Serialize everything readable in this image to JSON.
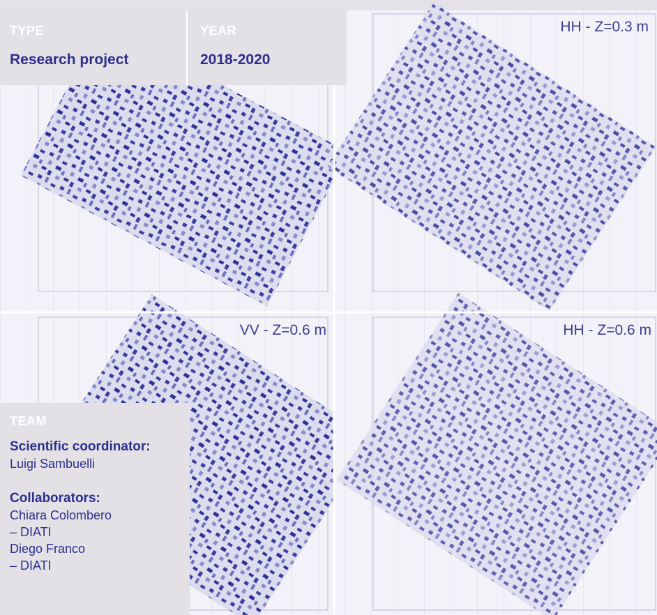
{
  "info": {
    "type_label": "TYPE",
    "type_value": "Research project",
    "year_label": "YEAR",
    "year_value": "2018-2020"
  },
  "maps": {
    "top_right": "HH - Z=0.3 m",
    "bottom_left": "VV - Z=0.6 m",
    "bottom_right": "HH - Z=0.6 m"
  },
  "team": {
    "heading": "TEAM",
    "roles": [
      {
        "title": "Scientific coordinator:",
        "members": [
          "Luigi Sambuelli"
        ]
      },
      {
        "title": "Collaborators:",
        "members": [
          "Chiara Colombero",
          "– DIATI",
          "Diego Franco",
          "– DIATI"
        ]
      }
    ]
  }
}
